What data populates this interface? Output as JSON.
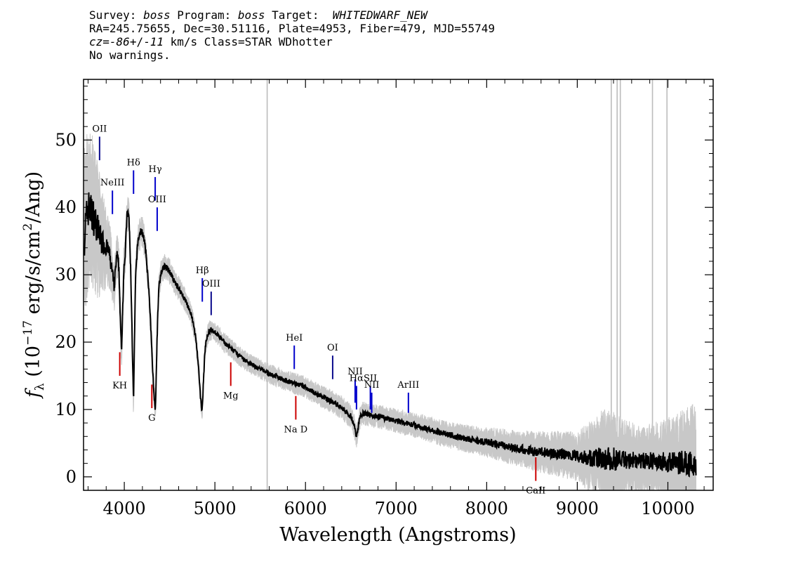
{
  "header": {
    "line1_prefix": "Survey: ",
    "survey": "boss",
    "line1_mid": " Program: ",
    "program": "boss",
    "line1_target_label": " Target:  ",
    "target": "WHITEDWARF_NEW",
    "line2": "RA=245.75655, Dec=30.51116, Plate=4953, Fiber=479, MJD=55749",
    "cz_label": "cz",
    "cz_equals": "=",
    "cz_value": "-86",
    "cz_pm": "+/-",
    "cz_err": "11",
    "line3_suffix": " km/s Class=STAR WDhotter",
    "line4": "No warnings."
  },
  "chart_data": {
    "type": "line",
    "xlabel": "Wavelength (Angstroms)",
    "ylabel": "f_λ (10^-17 erg/s/cm²/Ang)",
    "ylabel_parts": {
      "f": "f",
      "lambda": "λ",
      "unit_a": " (10",
      "exp": "−17",
      "unit_b": " erg/s/cm",
      "exp2": "2",
      "unit_c": "/Ang)"
    },
    "xlim": [
      3550,
      10500
    ],
    "ylim": [
      -2,
      59
    ],
    "x_ticks": [
      4000,
      5000,
      6000,
      7000,
      8000,
      9000,
      10000
    ],
    "y_ticks": [
      0,
      10,
      20,
      30,
      40,
      50
    ],
    "grid": false,
    "series": [
      {
        "role": "flux",
        "color": "#000000",
        "x": [
          3560,
          3600,
          3650,
          3700,
          3750,
          3800,
          3830,
          3860,
          3890,
          3900,
          3920,
          3940,
          3960,
          3970,
          3980,
          3995,
          4010,
          4030,
          4050,
          4070,
          4085,
          4095,
          4102,
          4110,
          4125,
          4150,
          4180,
          4210,
          4240,
          4270,
          4300,
          4320,
          4335,
          4341,
          4348,
          4360,
          4380,
          4410,
          4440,
          4470,
          4500,
          4550,
          4600,
          4650,
          4700,
          4750,
          4790,
          4820,
          4840,
          4855,
          4862,
          4870,
          4885,
          4900,
          4930,
          4960,
          5000,
          5050,
          5100,
          5200,
          5300,
          5400,
          5500,
          5600,
          5700,
          5800,
          5900,
          6000,
          6100,
          6200,
          6300,
          6400,
          6450,
          6500,
          6530,
          6550,
          6563,
          6575,
          6600,
          6630,
          6700,
          6800,
          6900,
          7000,
          7100,
          7200,
          7300,
          7400,
          7500,
          7600,
          7700,
          7800,
          7900,
          8000,
          8100,
          8200,
          8300,
          8400,
          8500,
          8600,
          8700,
          8800,
          8900,
          9000,
          9100,
          9200,
          9300,
          9400,
          9500,
          9600,
          9700,
          9800,
          9900,
          10000,
          10100,
          10200,
          10300
        ],
        "y": [
          36,
          40,
          39,
          37,
          35,
          34,
          33.5,
          31,
          28,
          30.5,
          33,
          31,
          22,
          18,
          24,
          31,
          33,
          39,
          39,
          31,
          22,
          15,
          11,
          18,
          30,
          35,
          36.5,
          36,
          33,
          28,
          20,
          14,
          11,
          10.2,
          12,
          20,
          28,
          30.5,
          31.2,
          31,
          30.5,
          29,
          28,
          26.8,
          25.5,
          23.5,
          20.5,
          16,
          12,
          10,
          10.5,
          13,
          17.5,
          20,
          21.5,
          21.8,
          21.5,
          20.8,
          20,
          18.8,
          17.6,
          16.7,
          16,
          15.3,
          14.8,
          14.2,
          13.8,
          13.3,
          12.5,
          11.8,
          11.1,
          10.3,
          9.6,
          9,
          8,
          6.8,
          6,
          6.8,
          8.8,
          9.5,
          9.2,
          9,
          8.6,
          8.3,
          8,
          7.7,
          7.3,
          6.9,
          6.5,
          6.2,
          5.9,
          5.6,
          5.3,
          5.1,
          4.9,
          4.6,
          4.3,
          4.1,
          3.8,
          3.7,
          3.5,
          3.4,
          3.2,
          3,
          2.9,
          2.8,
          2.7,
          2.6,
          2.6,
          2.5,
          2.4,
          2.4,
          2.3,
          2.2,
          2.1,
          2,
          2
        ]
      },
      {
        "role": "error",
        "color": "#c8c8c8",
        "x": [
          3560,
          3700,
          3800,
          3900,
          4000,
          4200,
          4400,
          4600,
          5000,
          5500,
          6000,
          6500,
          7000,
          7500,
          8000,
          8500,
          9000,
          9300,
          9400,
          9500,
          9700,
          9900,
          10100,
          10300
        ],
        "y": [
          9,
          7,
          4,
          2.5,
          2,
          1.6,
          1.4,
          1.2,
          1,
          1,
          1.1,
          1.2,
          1.2,
          1.3,
          1.5,
          2,
          2.5,
          5,
          5,
          4,
          3.5,
          4,
          5,
          6
        ]
      }
    ],
    "sky_lines": [
      5577,
      9375,
      9440,
      9475,
      9830,
      9990
    ],
    "emission_lines": [
      {
        "label": "OII",
        "x": 3727,
        "y_bottom": 47,
        "y_top": 50.5,
        "color": "#0a0a8c"
      },
      {
        "label": "NeIII",
        "x": 3869,
        "y_bottom": 39,
        "y_top": 42.5,
        "color": "#0000cc"
      },
      {
        "label": "Hδ",
        "x": 4102,
        "y_bottom": 42,
        "y_top": 45.5,
        "color": "#0000cc"
      },
      {
        "label": "Hγ",
        "x": 4341,
        "y_bottom": 41,
        "y_top": 44.5,
        "color": "#0000cc"
      },
      {
        "label": "OIII",
        "x": 4363,
        "y_bottom": 36.5,
        "y_top": 40,
        "color": "#0000cc"
      },
      {
        "label": "Hβ",
        "x": 4861,
        "y_bottom": 26,
        "y_top": 29.5,
        "color": "#0000cc"
      },
      {
        "label": "OIII",
        "x": 4959,
        "y_bottom": 24,
        "y_top": 27.5,
        "color": "#0a0a8c"
      },
      {
        "label": "HeI",
        "x": 5876,
        "y_bottom": 16,
        "y_top": 19.5,
        "color": "#0000cc"
      },
      {
        "label": "OI",
        "x": 6300,
        "y_bottom": 14.5,
        "y_top": 18,
        "color": "#0a0a8c"
      },
      {
        "label": "NII",
        "x": 6548,
        "y_bottom": 11,
        "y_top": 14.5,
        "color": "#0000cc"
      },
      {
        "label": "Hα",
        "x": 6563,
        "y_bottom": 10,
        "y_top": 13.5,
        "color": "#0000cc"
      },
      {
        "label": "SII",
        "x": 6716,
        "y_bottom": 10,
        "y_top": 13.5,
        "color": "#0000cc"
      },
      {
        "label": "NII",
        "x": 6731,
        "y_bottom": 9.5,
        "y_top": 12.5,
        "color": "#0000cc"
      },
      {
        "label": "ArIII",
        "x": 7136,
        "y_bottom": 9.5,
        "y_top": 12.5,
        "color": "#0000cc"
      }
    ],
    "absorption_lines": [
      {
        "label": "KH",
        "x": 3950,
        "y_bottom": 15,
        "y_top": 18.5,
        "color": "#cc0000"
      },
      {
        "label": "G",
        "x": 4304,
        "y_bottom": 10.2,
        "y_top": 13.7,
        "color": "#cc0000"
      },
      {
        "label": "Mg",
        "x": 5175,
        "y_bottom": 13.5,
        "y_top": 17,
        "color": "#cc0000"
      },
      {
        "label": "Na D",
        "x": 5893,
        "y_bottom": 8.5,
        "y_top": 12,
        "color": "#cc0000"
      },
      {
        "label": "CaII",
        "x": 8542,
        "y_bottom": -0.6,
        "y_top": 2.9,
        "color": "#cc0000"
      }
    ]
  }
}
